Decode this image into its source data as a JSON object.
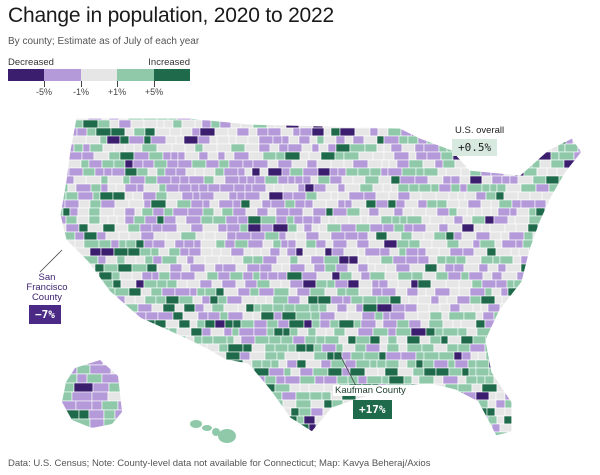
{
  "title": "Change in population, 2020 to 2022",
  "subtitle": "By county; Estimate as of July of each year",
  "legend": {
    "decreased_label": "Decreased",
    "increased_label": "Increased",
    "ticks": [
      "-5%",
      "-1%",
      "+1%",
      "+5%"
    ],
    "colors": [
      "#3b1f6e",
      "#b49ad8",
      "#e6e6e6",
      "#8fc9aa",
      "#1e6a4a"
    ]
  },
  "annotations": {
    "us_overall_label": "U.S. overall",
    "us_overall_value": "+0.5%",
    "sf_label_line1": "San",
    "sf_label_line2": "Francisco",
    "sf_label_line3": "County",
    "sf_value": "−7%",
    "kaufman_label": "Kaufman County",
    "kaufman_value": "+17%"
  },
  "colors": {
    "strong_decrease": "#3b1f6e",
    "decrease": "#b49ad8",
    "neutral": "#e6e6e6",
    "increase": "#8fc9aa",
    "strong_increase": "#1e6a4a"
  },
  "footer": "Data: U.S. Census; Note: County-level data not available for Connecticut; Map: Kavya Beheraj/Axios"
}
